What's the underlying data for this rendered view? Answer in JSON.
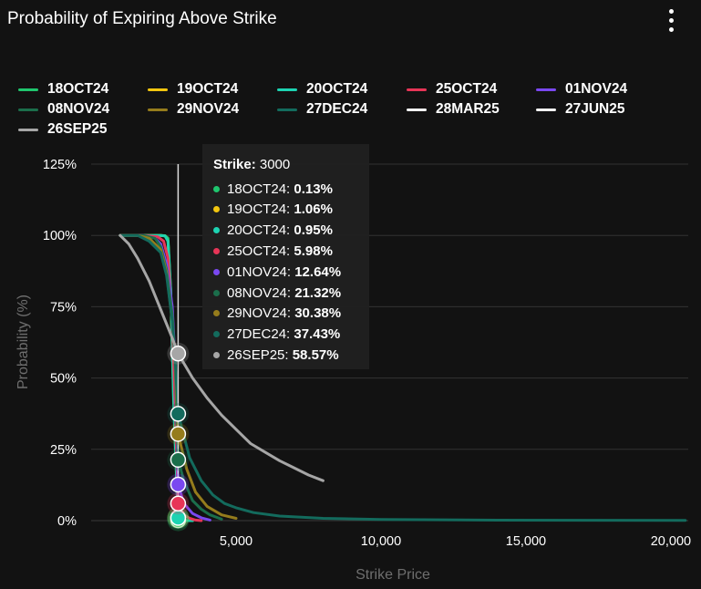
{
  "header": {
    "title": "Probability of Expiring Above Strike",
    "menu_icon": "more-vertical-icon"
  },
  "colors": {
    "background": "#121212",
    "axis_text": "#ffffff",
    "axis_title": "#6e6e6e",
    "grid": "#333333"
  },
  "chart_data": {
    "type": "line",
    "title": "",
    "xlabel": "Strike Price",
    "ylabel": "Probability (%)",
    "xlim": [
      0,
      20600
    ],
    "ylim": [
      0,
      125
    ],
    "x_ticks": [
      5000,
      10000,
      15000,
      20000
    ],
    "x_tick_labels": [
      "5,000",
      "10,000",
      "15,000",
      "20,000"
    ],
    "y_ticks": [
      0,
      25,
      50,
      75,
      100,
      125
    ],
    "y_tick_labels": [
      "0%",
      "25%",
      "50%",
      "75%",
      "100%",
      "125%"
    ],
    "grid": "horizontal",
    "legend_position": "top",
    "series": [
      {
        "name": "18OCT24",
        "color": "#1fc66e",
        "x": [
          1000,
          2000,
          2400,
          2550,
          2650,
          2750,
          2850,
          3000,
          3150,
          3300,
          3500
        ],
        "y": [
          100,
          100,
          100,
          99.9,
          99,
          80,
          40,
          0.13,
          0,
          0,
          0
        ]
      },
      {
        "name": "19OCT24",
        "color": "#f2c60f",
        "x": [
          1000,
          2000,
          2400,
          2550,
          2650,
          2750,
          2850,
          3000,
          3150,
          3300,
          3500
        ],
        "y": [
          100,
          100,
          100,
          99.8,
          98,
          78,
          45,
          1.06,
          0.2,
          0,
          0
        ]
      },
      {
        "name": "20OCT24",
        "color": "#1dd3b2",
        "x": [
          1000,
          2000,
          2400,
          2550,
          2650,
          2750,
          2850,
          3000,
          3150,
          3300,
          3500
        ],
        "y": [
          100,
          100,
          100,
          99.8,
          98,
          80,
          42,
          0.95,
          0.2,
          0,
          0
        ]
      },
      {
        "name": "25OCT24",
        "color": "#e73557",
        "x": [
          1000,
          1800,
          2300,
          2500,
          2650,
          2800,
          2900,
          3000,
          3200,
          3400,
          3600,
          3800
        ],
        "y": [
          100,
          100,
          99.5,
          98,
          92,
          70,
          40,
          5.98,
          2,
          0.8,
          0.2,
          0
        ]
      },
      {
        "name": "01NOV24",
        "color": "#7a48f0",
        "x": [
          1000,
          1800,
          2200,
          2400,
          2600,
          2800,
          2900,
          3000,
          3200,
          3500,
          3800,
          4100
        ],
        "y": [
          100,
          100,
          99,
          97,
          90,
          75,
          55,
          12.64,
          6,
          2.5,
          1,
          0.2
        ]
      },
      {
        "name": "08NOV24",
        "color": "#1b6e4b",
        "x": [
          1000,
          1800,
          2200,
          2400,
          2600,
          2800,
          2900,
          3000,
          3200,
          3500,
          3800,
          4100,
          4500
        ],
        "y": [
          100,
          100,
          99,
          96,
          88,
          72,
          55,
          21.32,
          14,
          7,
          4,
          2,
          0.5
        ]
      },
      {
        "name": "29NOV24",
        "color": "#957c1c",
        "x": [
          1000,
          1600,
          2000,
          2400,
          2600,
          2800,
          2900,
          3000,
          3300,
          3600,
          4000,
          4500,
          5000
        ],
        "y": [
          100,
          100,
          99,
          95,
          87,
          70,
          55,
          30.38,
          18,
          10,
          5,
          2,
          0.8
        ]
      },
      {
        "name": "27DEC24",
        "color": "#136b5d",
        "x": [
          1000,
          1600,
          2000,
          2400,
          2600,
          2800,
          2900,
          3000,
          3400,
          3800,
          4200,
          4600,
          5000,
          5600,
          6500,
          8000,
          10000,
          14000,
          20500
        ],
        "y": [
          100,
          100,
          98,
          94,
          86,
          70,
          56,
          37.43,
          22,
          14,
          9,
          6,
          4.5,
          2.8,
          1.6,
          0.8,
          0.4,
          0.15,
          0.05
        ]
      },
      {
        "name": "28MAR25",
        "color": "#f4f4f4",
        "x": [],
        "y": []
      },
      {
        "name": "27JUN25",
        "color": "#f4f4f4",
        "x": [],
        "y": []
      },
      {
        "name": "26SEP25",
        "color": "#a6a6a6",
        "x": [
          1000,
          1300,
          1600,
          2000,
          2400,
          2800,
          3000,
          3500,
          4000,
          4500,
          5000,
          5500,
          6000,
          6500,
          7000,
          7500,
          8000
        ],
        "y": [
          100,
          97,
          92,
          84,
          74,
          64,
          58.57,
          50,
          43,
          37,
          32,
          27,
          24,
          21,
          18.5,
          16,
          14
        ]
      }
    ]
  },
  "tooltip": {
    "strike_label": "Strike:",
    "strike_value": "3000",
    "x": 3000,
    "rows": [
      {
        "name": "18OCT24",
        "value": "0.13%",
        "color": "#1fc66e"
      },
      {
        "name": "19OCT24",
        "value": "1.06%",
        "color": "#f2c60f"
      },
      {
        "name": "20OCT24",
        "value": "0.95%",
        "color": "#1dd3b2"
      },
      {
        "name": "25OCT24",
        "value": "5.98%",
        "color": "#e73557"
      },
      {
        "name": "01NOV24",
        "value": "12.64%",
        "color": "#7a48f0"
      },
      {
        "name": "08NOV24",
        "value": "21.32%",
        "color": "#1b6e4b"
      },
      {
        "name": "29NOV24",
        "value": "30.38%",
        "color": "#957c1c"
      },
      {
        "name": "27DEC24",
        "value": "37.43%",
        "color": "#136b5d"
      },
      {
        "name": "26SEP25",
        "value": "58.57%",
        "color": "#a6a6a6"
      }
    ]
  }
}
